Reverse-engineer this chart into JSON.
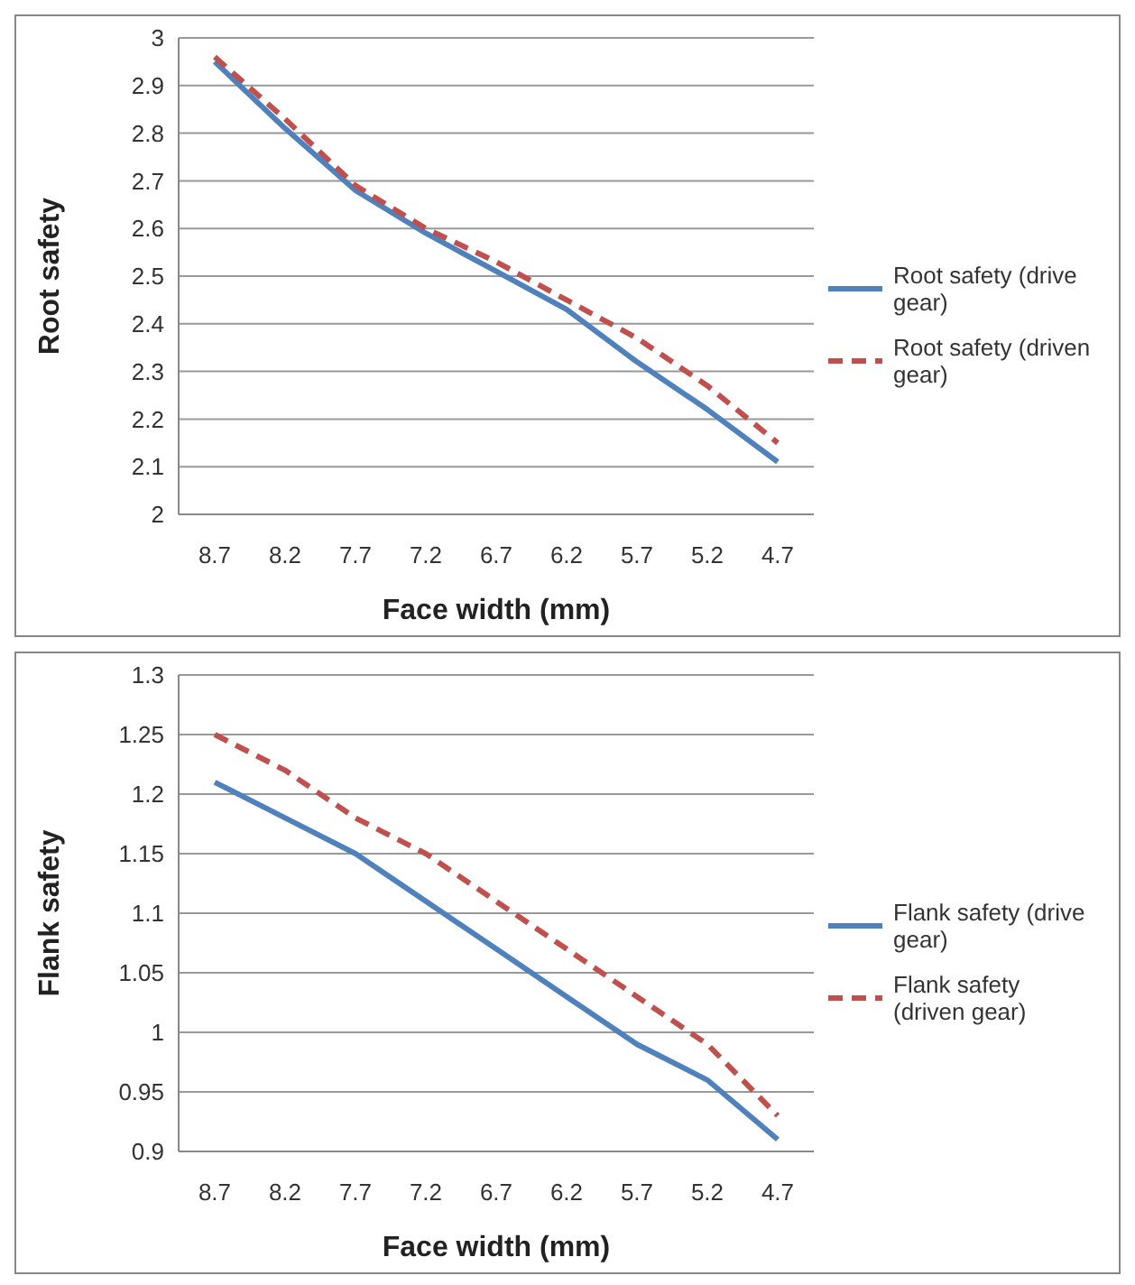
{
  "chart_data": [
    {
      "type": "line",
      "xlabel": "Face width (mm)",
      "ylabel": "Root safety",
      "categories": [
        "8.7",
        "8.2",
        "7.7",
        "7.2",
        "6.7",
        "6.2",
        "5.7",
        "5.2",
        "4.7"
      ],
      "ylim": [
        2,
        3
      ],
      "yticks": [
        2,
        "2.1",
        "2.2",
        "2.3",
        "2.4",
        "2.5",
        "2.6",
        "2.7",
        "2.8",
        "2.9",
        3
      ],
      "grid": "y",
      "legend": "right",
      "marker": "none",
      "series": [
        {
          "name": "Root safety (drive gear)",
          "color": "#4f81bd",
          "line_style": "solid",
          "values": [
            2.95,
            2.81,
            2.68,
            2.59,
            2.51,
            2.43,
            2.32,
            2.22,
            2.11
          ]
        },
        {
          "name": "Root safety (driven gear)",
          "color": "#c0504d",
          "line_style": "dashed",
          "values": [
            2.96,
            2.83,
            2.69,
            2.6,
            2.53,
            2.45,
            2.37,
            2.27,
            2.15
          ]
        }
      ]
    },
    {
      "type": "line",
      "xlabel": "Face width (mm)",
      "ylabel": "Flank safety",
      "categories": [
        "8.7",
        "8.2",
        "7.7",
        "7.2",
        "6.7",
        "6.2",
        "5.7",
        "5.2",
        "4.7"
      ],
      "ylim": [
        0.9,
        1.3
      ],
      "yticks": [
        0.9,
        0.95,
        1,
        1.05,
        1.1,
        1.15,
        1.2,
        1.25,
        1.3
      ],
      "grid": "y",
      "legend": "right",
      "marker": "none",
      "series": [
        {
          "name": "Flank safety (drive gear)",
          "color": "#4f81bd",
          "line_style": "solid",
          "values": [
            1.21,
            1.18,
            1.15,
            1.11,
            1.07,
            1.03,
            0.99,
            0.96,
            0.91
          ]
        },
        {
          "name": "Flank safety (driven gear)",
          "color": "#c0504d",
          "line_style": "dashed",
          "values": [
            1.25,
            1.22,
            1.18,
            1.15,
            1.11,
            1.07,
            1.03,
            0.99,
            0.93
          ]
        }
      ]
    }
  ]
}
